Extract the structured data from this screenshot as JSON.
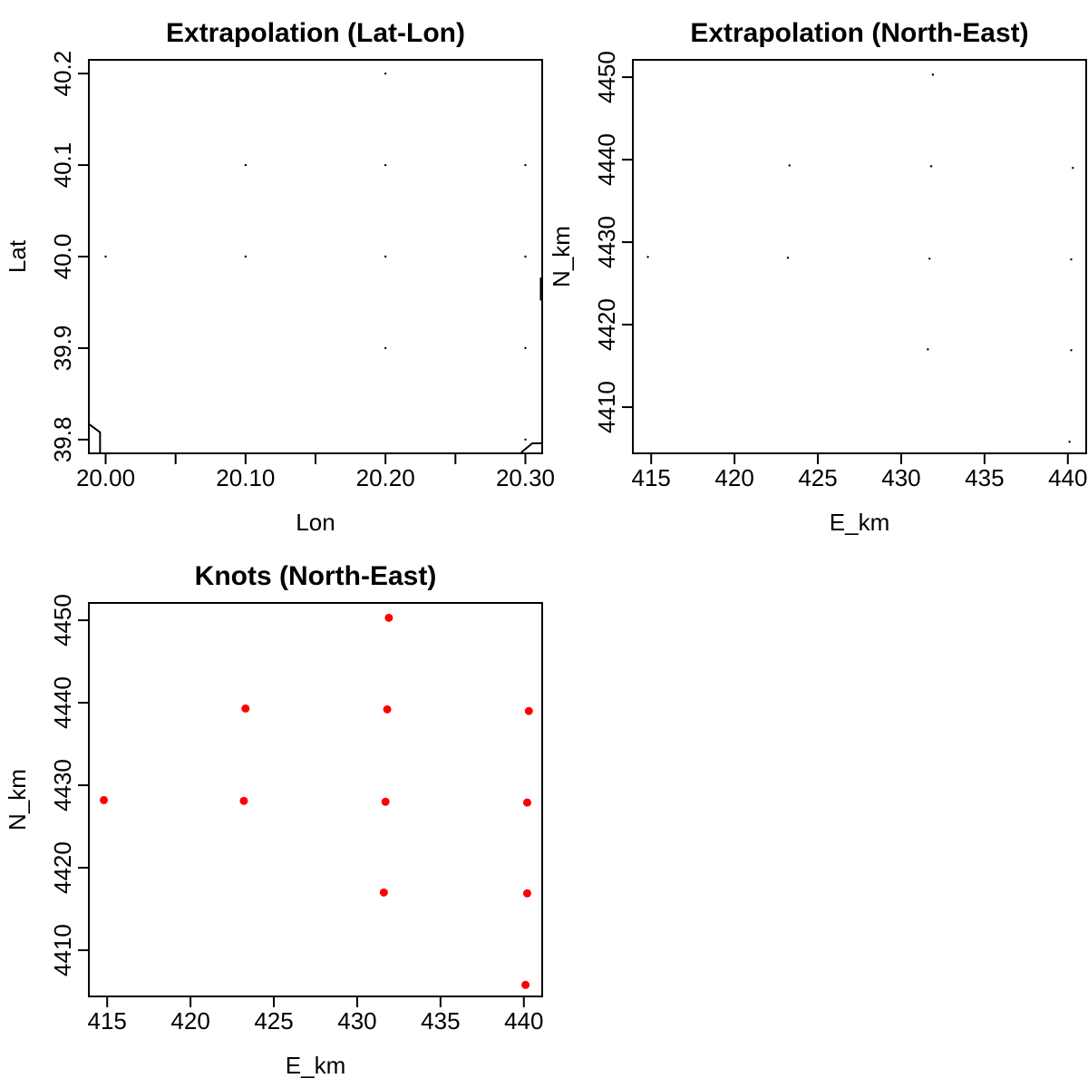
{
  "chart_data": [
    {
      "type": "scatter",
      "title": "Extrapolation (Lat-Lon)",
      "xlabel": "Lon",
      "ylabel": "Lat",
      "xlim": [
        19.988,
        20.312
      ],
      "ylim": [
        39.785,
        40.215
      ],
      "x_ticks": [
        20.0,
        20.05,
        20.1,
        20.15,
        20.2,
        20.25,
        20.3
      ],
      "x_tick_labels": [
        "20.00",
        "",
        "20.10",
        "",
        "20.20",
        "",
        "20.30"
      ],
      "y_ticks": [
        39.8,
        39.9,
        40.0,
        40.1,
        40.2
      ],
      "y_tick_labels": [
        "39.8",
        "39.9",
        "40.0",
        "40.1",
        "40.2"
      ],
      "marker": "dot",
      "color": "#000000",
      "grid": false,
      "legend": "none",
      "points": [
        {
          "x": 20.2,
          "y": 40.2
        },
        {
          "x": 20.1,
          "y": 40.1
        },
        {
          "x": 20.2,
          "y": 40.1
        },
        {
          "x": 20.3,
          "y": 40.1
        },
        {
          "x": 20.0,
          "y": 40.0
        },
        {
          "x": 20.1,
          "y": 40.0
        },
        {
          "x": 20.2,
          "y": 40.0
        },
        {
          "x": 20.3,
          "y": 40.0
        },
        {
          "x": 20.2,
          "y": 39.9
        },
        {
          "x": 20.3,
          "y": 39.9
        },
        {
          "x": 20.3,
          "y": 39.8
        }
      ],
      "lines": [
        [
          {
            "x": 19.988,
            "y": 39.817
          },
          {
            "x": 19.996,
            "y": 39.808
          },
          {
            "x": 19.996,
            "y": 39.786
          }
        ],
        [
          {
            "x": 20.297,
            "y": 39.786
          },
          {
            "x": 20.305,
            "y": 39.796
          },
          {
            "x": 20.312,
            "y": 39.796
          }
        ],
        [
          {
            "x": 20.311,
            "y": 39.977
          },
          {
            "x": 20.311,
            "y": 39.952
          }
        ]
      ]
    },
    {
      "type": "scatter",
      "title": "Extrapolation (North-East)",
      "xlabel": "E_km",
      "ylabel": "N_km",
      "xlim": [
        413.9,
        441.1
      ],
      "ylim": [
        4404.4,
        4452.1
      ],
      "x_ticks": [
        415,
        420,
        425,
        430,
        435,
        440
      ],
      "x_tick_labels": [
        "415",
        "420",
        "425",
        "430",
        "435",
        "440"
      ],
      "y_ticks": [
        4410,
        4420,
        4430,
        4440,
        4450
      ],
      "y_tick_labels": [
        "4410",
        "4420",
        "4430",
        "4440",
        "4450"
      ],
      "marker": "dot",
      "color": "#000000",
      "grid": false,
      "legend": "none",
      "points": [
        {
          "x": 431.9,
          "y": 4450.3
        },
        {
          "x": 423.3,
          "y": 4439.3
        },
        {
          "x": 431.8,
          "y": 4439.2
        },
        {
          "x": 440.3,
          "y": 4439.0
        },
        {
          "x": 414.8,
          "y": 4428.2
        },
        {
          "x": 423.2,
          "y": 4428.1
        },
        {
          "x": 431.7,
          "y": 4428.0
        },
        {
          "x": 440.2,
          "y": 4427.9
        },
        {
          "x": 431.6,
          "y": 4417.0
        },
        {
          "x": 440.2,
          "y": 4416.9
        },
        {
          "x": 440.1,
          "y": 4405.8
        }
      ]
    },
    {
      "type": "scatter",
      "title": "Knots (North-East)",
      "xlabel": "E_km",
      "ylabel": "N_km",
      "xlim": [
        413.9,
        441.1
      ],
      "ylim": [
        4404.4,
        4452.1
      ],
      "x_ticks": [
        415,
        420,
        425,
        430,
        435,
        440
      ],
      "x_tick_labels": [
        "415",
        "420",
        "425",
        "430",
        "435",
        "440"
      ],
      "y_ticks": [
        4410,
        4420,
        4430,
        4440,
        4450
      ],
      "y_tick_labels": [
        "4410",
        "4420",
        "4430",
        "4440",
        "4450"
      ],
      "marker": "filled-circle",
      "color": "#ff0000",
      "grid": false,
      "legend": "none",
      "points": [
        {
          "x": 431.9,
          "y": 4450.3
        },
        {
          "x": 423.3,
          "y": 4439.3
        },
        {
          "x": 431.8,
          "y": 4439.2
        },
        {
          "x": 440.3,
          "y": 4439.0
        },
        {
          "x": 414.8,
          "y": 4428.2
        },
        {
          "x": 423.2,
          "y": 4428.1
        },
        {
          "x": 431.7,
          "y": 4428.0
        },
        {
          "x": 440.2,
          "y": 4427.9
        },
        {
          "x": 431.6,
          "y": 4417.0
        },
        {
          "x": 440.2,
          "y": 4416.9
        },
        {
          "x": 440.1,
          "y": 4405.8
        }
      ]
    }
  ]
}
